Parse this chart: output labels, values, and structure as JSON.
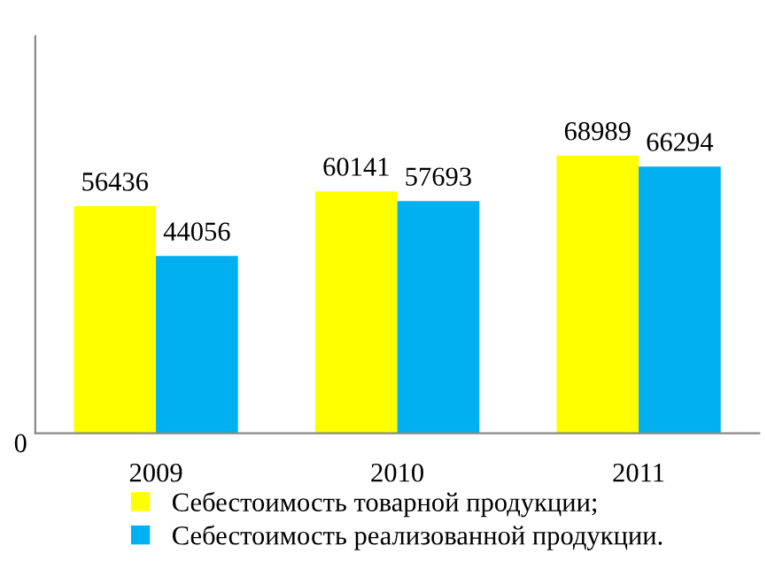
{
  "chart_data": {
    "type": "bar",
    "categories": [
      "2009",
      "2010",
      "2011"
    ],
    "series": [
      {
        "name": "Себестоимость товарной продукции;",
        "color": "#ffff00",
        "values": [
          56436,
          60141,
          68989
        ]
      },
      {
        "name": "Себестоимость реализованной продукции.",
        "color": "#00b0f0",
        "values": [
          44056,
          57693,
          66294
        ]
      }
    ],
    "annotations": [
      "0"
    ],
    "data_labels": true,
    "grid": false,
    "legend": "bottom"
  }
}
